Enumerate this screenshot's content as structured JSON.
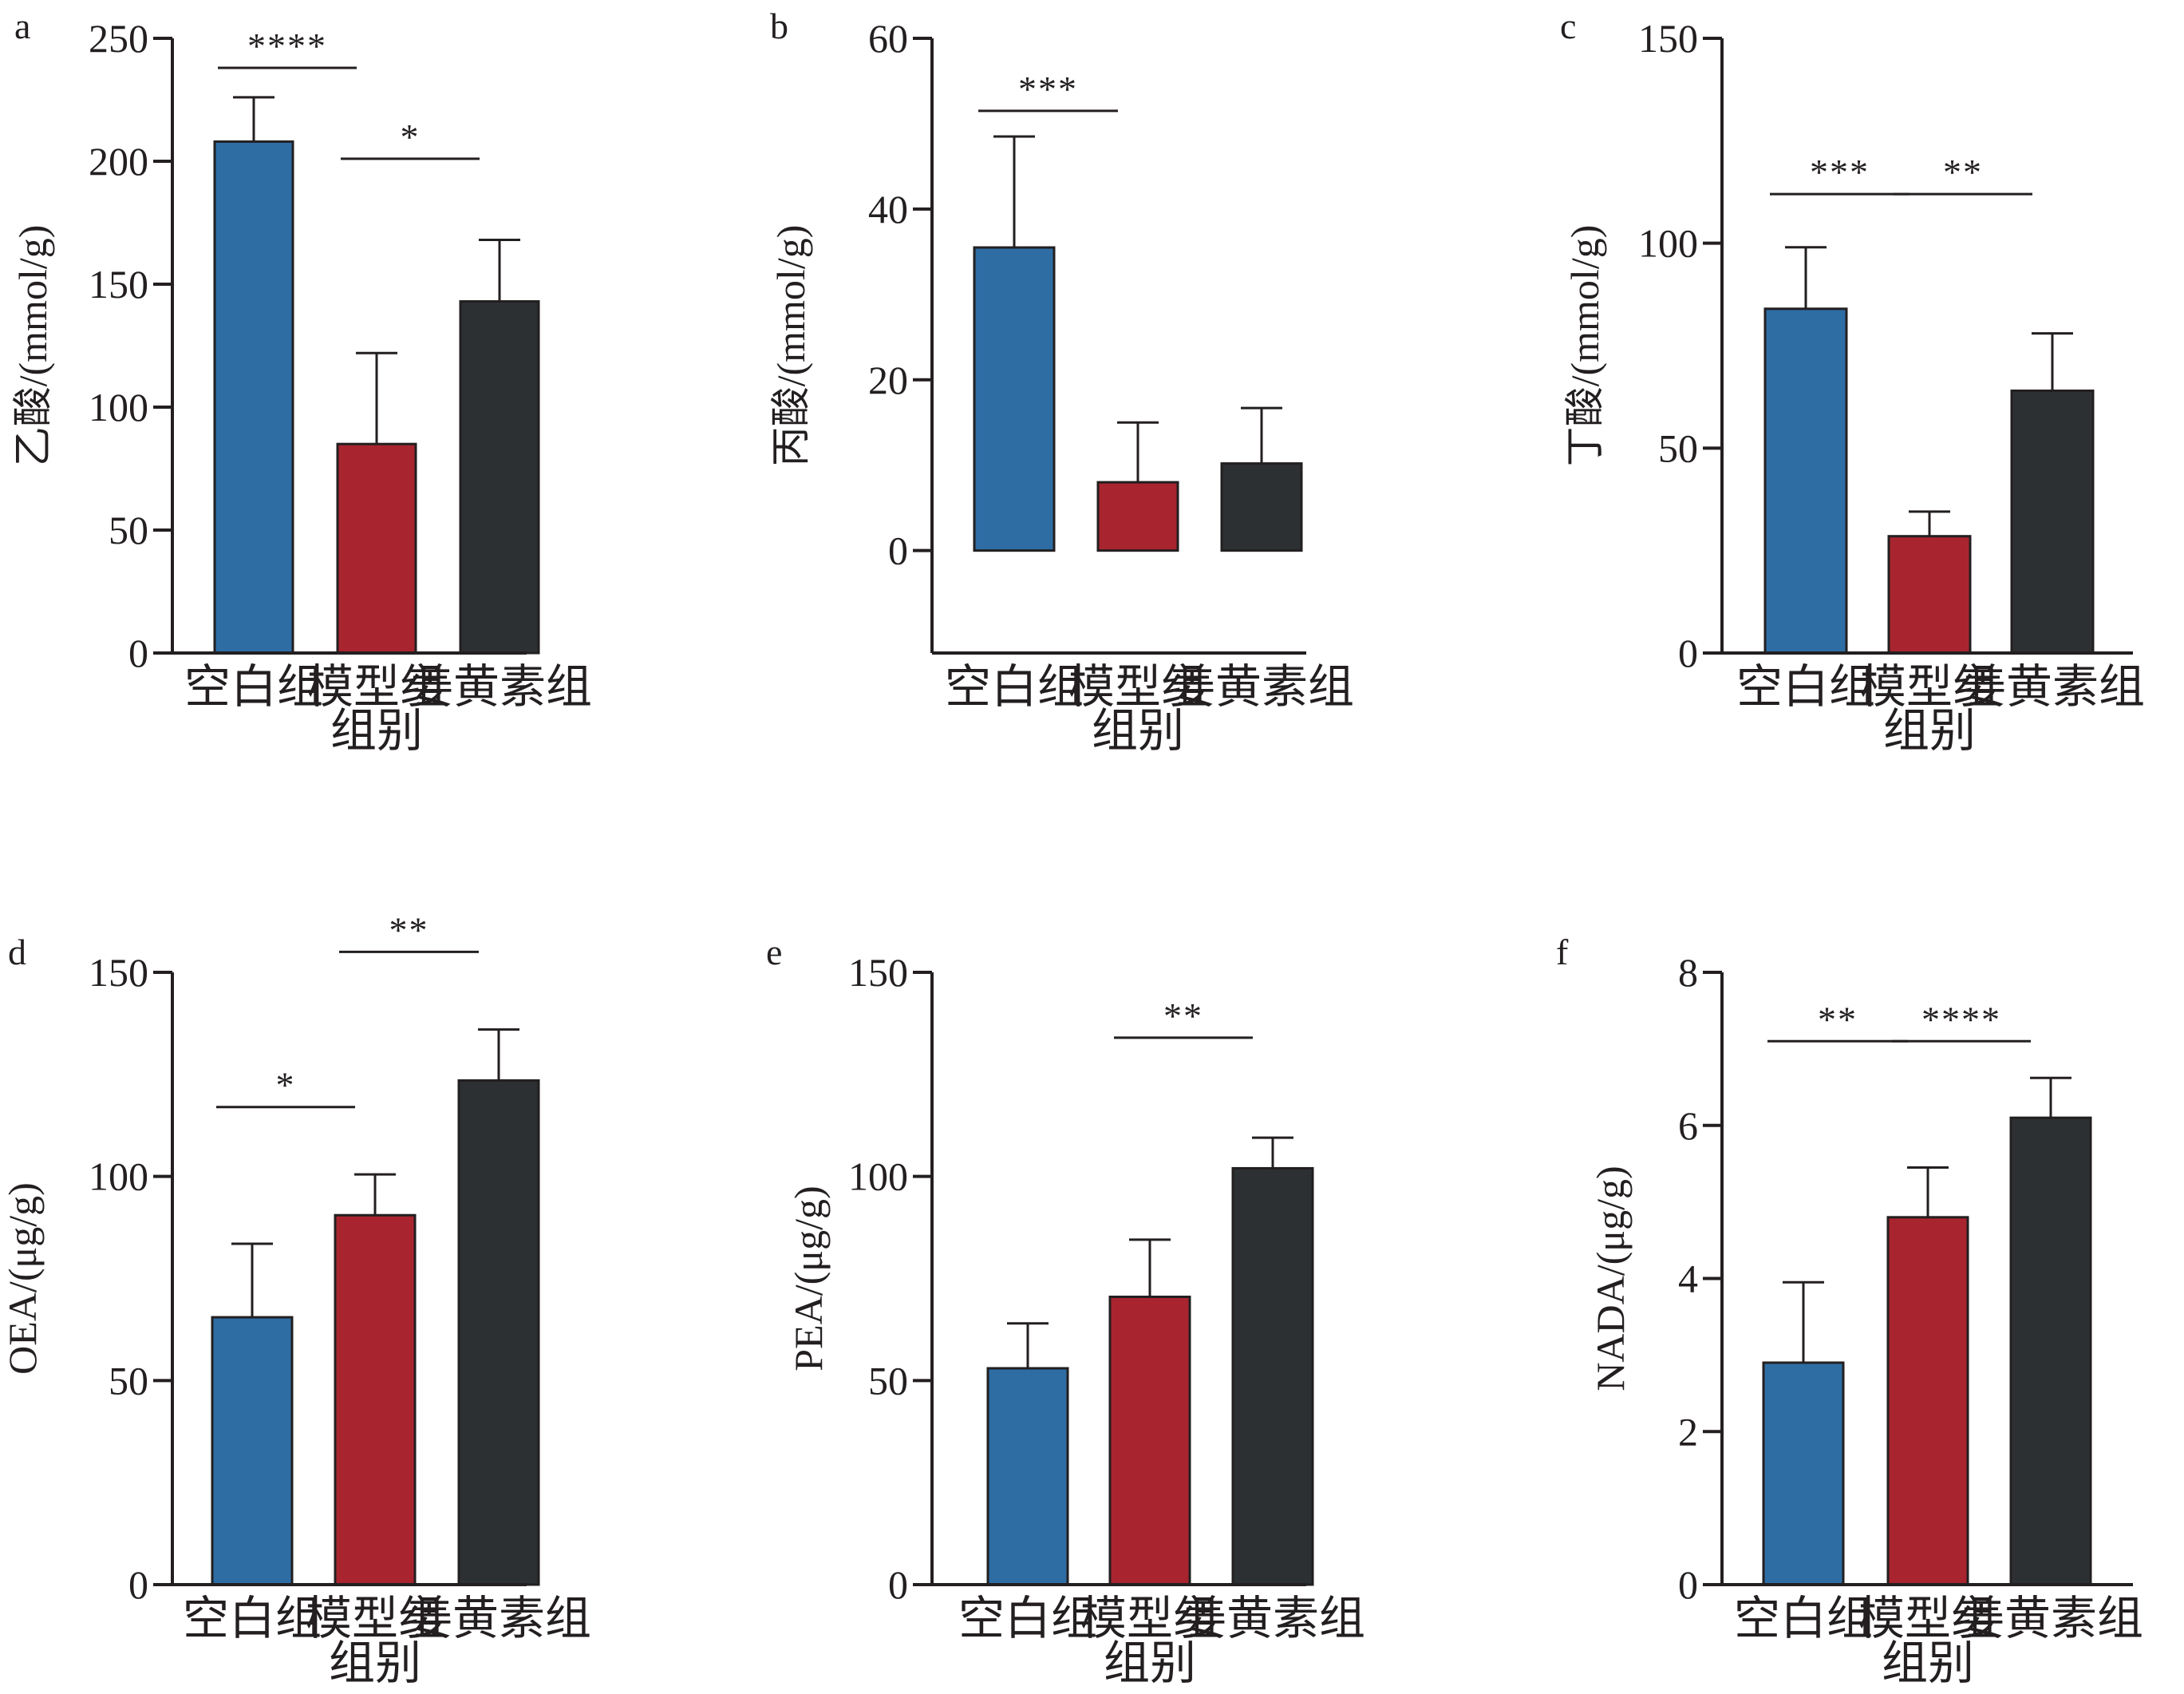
{
  "colors": {
    "blank_group": "#2e6da4",
    "model_group": "#a82530",
    "curcumin_group": "#2d3033",
    "axis": "#231f20"
  },
  "chart_data": [
    {
      "panel": "a",
      "type": "bar",
      "categories": [
        "空白组",
        "模型组",
        "姜黄素组"
      ],
      "values": [
        208,
        85,
        143
      ],
      "errors": [
        18,
        37,
        25
      ],
      "ylabel": "乙酸/(mmol/g)",
      "xlabel": "组别",
      "ylim": [
        0,
        250
      ],
      "yticks": [
        0,
        50,
        100,
        150,
        200,
        250
      ],
      "significance": [
        {
          "groups": [
            0,
            1
          ],
          "label": "****",
          "level": 238
        },
        {
          "groups": [
            1,
            2
          ],
          "label": "*",
          "level": 201
        }
      ]
    },
    {
      "panel": "b",
      "type": "bar",
      "categories": [
        "空白组",
        "模型组",
        "姜黄素组"
      ],
      "values": [
        35.5,
        8,
        10.2
      ],
      "errors": [
        13,
        7,
        6.5
      ],
      "ylabel": "丙酸/(mmol/g)",
      "xlabel": "组别",
      "ylim": [
        -12,
        60
      ],
      "yticks": [
        0,
        20,
        40,
        60
      ],
      "significance": [
        {
          "groups": [
            0,
            1
          ],
          "label": "***",
          "level": 51.5
        }
      ]
    },
    {
      "panel": "c",
      "type": "bar",
      "categories": [
        "空白组",
        "模型组",
        "姜黄素组"
      ],
      "values": [
        84,
        28.5,
        64
      ],
      "errors": [
        15,
        6,
        14
      ],
      "ylabel": "丁酸/(mmol/g)",
      "xlabel": "组别",
      "ylim": [
        0,
        150
      ],
      "yticks": [
        0,
        50,
        100,
        150
      ],
      "significance": [
        {
          "groups": [
            0,
            1
          ],
          "label": "***",
          "level": 112
        },
        {
          "groups": [
            1,
            2
          ],
          "label": "**",
          "level": 112
        }
      ]
    },
    {
      "panel": "d",
      "type": "bar",
      "categories": [
        "空白组",
        "模型组",
        "姜黄素组"
      ],
      "values": [
        65.5,
        90.5,
        123.5
      ],
      "errors": [
        18,
        10,
        12.5
      ],
      "ylabel": "OEA/(μg/g)",
      "xlabel": "组别",
      "ylim": [
        0,
        150
      ],
      "yticks": [
        0,
        50,
        100,
        150
      ],
      "significance": [
        {
          "groups": [
            0,
            1
          ],
          "label": "*",
          "level": 117
        },
        {
          "groups": [
            1,
            2
          ],
          "label": "**",
          "level": 155
        }
      ]
    },
    {
      "panel": "e",
      "type": "bar",
      "categories": [
        "空白组",
        "模型组",
        "姜黄素组"
      ],
      "values": [
        53,
        70.5,
        102
      ],
      "errors": [
        11,
        14,
        7.5
      ],
      "ylabel": "PEA/(μg/g)",
      "xlabel": "组别",
      "ylim": [
        0,
        150
      ],
      "yticks": [
        0,
        50,
        100,
        150
      ],
      "significance": [
        {
          "groups": [
            1,
            2
          ],
          "label": "**",
          "level": 134
        }
      ]
    },
    {
      "panel": "f",
      "type": "bar",
      "categories": [
        "空白组",
        "模型组",
        "姜黄素组"
      ],
      "values": [
        2.9,
        4.8,
        6.1
      ],
      "errors": [
        1.05,
        0.65,
        0.52
      ],
      "ylabel": "NADA/(μg/g)",
      "xlabel": "组别",
      "ylim": [
        0,
        8
      ],
      "yticks": [
        0,
        2,
        4,
        6,
        8
      ],
      "significance": [
        {
          "groups": [
            0,
            1
          ],
          "label": "**",
          "level": 7.1
        },
        {
          "groups": [
            1,
            2
          ],
          "label": "****",
          "level": 7.1
        }
      ]
    }
  ]
}
